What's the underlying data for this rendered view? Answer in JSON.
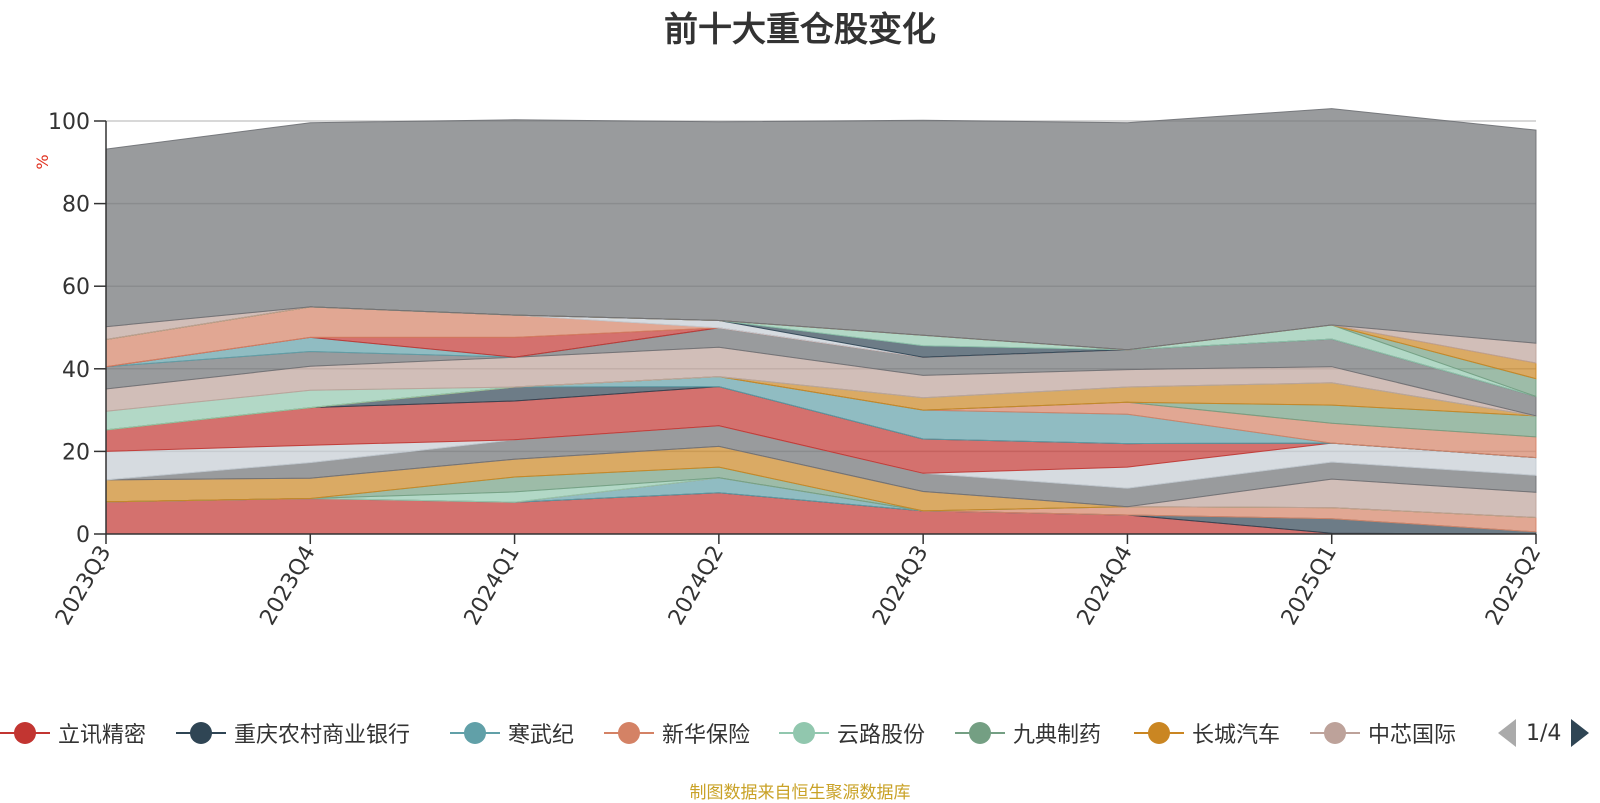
{
  "chart_data": {
    "type": "area",
    "stacked": true,
    "title": "前十大重仓股变化",
    "ylabel": "%",
    "ylim": [
      0,
      100
    ],
    "yticks": [
      0,
      20,
      40,
      60,
      80,
      100
    ],
    "grid": true,
    "legend_position": "bottom",
    "categories": [
      "2023Q3",
      "2023Q4",
      "2024Q1",
      "2024Q2",
      "2024Q3",
      "2024Q4",
      "2025Q1",
      "2025Q2"
    ],
    "series": [
      {
        "name": "立讯精密",
        "color": "#c23531",
        "values": [
          7.8,
          8.6,
          7.7,
          10.0,
          5.6,
          4.6,
          0.2,
          0.0
        ]
      },
      {
        "name": "重庆农村商业银行",
        "color": "#2f4554",
        "values": [
          0.0,
          0.0,
          0.0,
          0.0,
          0.0,
          0.0,
          3.5,
          0.5
        ]
      },
      {
        "name": "寒武纪",
        "color": "#61a0a8",
        "values": [
          0.0,
          0.0,
          0.0,
          3.6,
          0.0,
          0.0,
          0.0,
          0.0
        ]
      },
      {
        "name": "新华保险",
        "color": "#d48265",
        "values": [
          0.0,
          0.0,
          0.0,
          0.0,
          0.0,
          2.0,
          2.7,
          3.5
        ]
      },
      {
        "name": "云路股份",
        "color": "#91c7ae",
        "values": [
          0.0,
          0.0,
          2.5,
          0.0,
          0.0,
          0.0,
          0.0,
          0.0
        ]
      },
      {
        "name": "九典制药",
        "color": "#749f83",
        "values": [
          0.0,
          0.0,
          3.6,
          2.6,
          0.0,
          0.0,
          0.0,
          0.0
        ]
      },
      {
        "name": "长城汽车",
        "color": "#ca8622",
        "values": [
          5.3,
          4.9,
          4.3,
          5.0,
          4.7,
          0.0,
          0.0,
          0.0
        ]
      },
      {
        "name": "中芯国际",
        "color": "#bda29a",
        "values": [
          0.0,
          0.0,
          0.0,
          0.0,
          0.0,
          0.0,
          6.9,
          6.1
        ]
      },
      {
        "name": "",
        "color": "#6e7074",
        "values": [
          0.0,
          3.8,
          4.7,
          5.0,
          4.4,
          4.5,
          4.1,
          4.1
        ]
      },
      {
        "name": "",
        "color": "#c4ccd3",
        "values": [
          6.9,
          4.2,
          0.0,
          0.0,
          0.0,
          5.1,
          4.6,
          4.3
        ]
      },
      {
        "name": "",
        "color": "#c23531",
        "values": [
          5.2,
          9.1,
          9.4,
          9.5,
          8.3,
          5.7,
          0.0,
          0.0
        ]
      },
      {
        "name": "",
        "color": "#2f4554",
        "values": [
          0.0,
          0.0,
          3.4,
          0.0,
          0.0,
          0.0,
          0.0,
          0.0
        ]
      },
      {
        "name": "",
        "color": "#61a0a8",
        "values": [
          0.0,
          0.0,
          0.0,
          2.4,
          7.0,
          7.1,
          0.0,
          0.0
        ]
      },
      {
        "name": "",
        "color": "#d48265",
        "values": [
          0.0,
          0.0,
          0.0,
          0.0,
          0.0,
          2.9,
          4.8,
          5.0
        ]
      },
      {
        "name": "",
        "color": "#749f83",
        "values": [
          0.0,
          0.0,
          0.0,
          0.0,
          0.0,
          0.0,
          4.4,
          5.1
        ]
      },
      {
        "name": "",
        "color": "#ca8622",
        "values": [
          0.0,
          0.0,
          0.0,
          0.0,
          3.0,
          3.7,
          5.4,
          0.0
        ]
      },
      {
        "name": "",
        "color": "#91c7ae",
        "values": [
          4.5,
          4.2,
          0.0,
          0.0,
          0.0,
          0.0,
          0.0,
          0.0
        ]
      },
      {
        "name": "",
        "color": "#bda29a",
        "values": [
          5.4,
          5.8,
          7.2,
          7.1,
          5.4,
          4.2,
          3.9,
          0.0
        ]
      },
      {
        "name": "",
        "color": "#6e7074",
        "values": [
          5.4,
          3.6,
          0.0,
          4.7,
          4.4,
          4.8,
          6.7,
          4.7
        ]
      },
      {
        "name": "",
        "color": "#61a0a8",
        "values": [
          0.0,
          3.4,
          0.0,
          0.0,
          0.0,
          0.0,
          0.0,
          0.0
        ]
      },
      {
        "name": "",
        "color": "#c23531",
        "values": [
          0.0,
          0.0,
          4.8,
          0.0,
          0.0,
          0.0,
          0.0,
          0.0
        ]
      },
      {
        "name": "",
        "color": "#d48265",
        "values": [
          6.6,
          7.4,
          5.4,
          0.0,
          0.0,
          0.0,
          0.0,
          0.0
        ]
      },
      {
        "name": "",
        "color": "#c4ccd3",
        "values": [
          0.0,
          0.0,
          0.0,
          1.8,
          0.0,
          0.0,
          0.0,
          0.0
        ]
      },
      {
        "name": "",
        "color": "#2f4554",
        "values": [
          0.0,
          0.0,
          0.0,
          0.0,
          2.8,
          0.0,
          0.0,
          0.0
        ]
      },
      {
        "name": "",
        "color": "#91c7ae",
        "values": [
          0.0,
          0.0,
          0.0,
          0.0,
          2.5,
          0.0,
          3.4,
          0.0
        ]
      },
      {
        "name": "",
        "color": "#749f83",
        "values": [
          0.0,
          0.0,
          0.0,
          0.0,
          0.0,
          0.0,
          0.0,
          4.3
        ]
      },
      {
        "name": "",
        "color": "#ca8622",
        "values": [
          0.0,
          0.0,
          0.0,
          0.0,
          0.0,
          0.0,
          0.0,
          3.8
        ]
      },
      {
        "name": "",
        "color": "#bda29a",
        "values": [
          3.1,
          0.0,
          0.0,
          0.0,
          0.0,
          0.0,
          0.0,
          4.8
        ]
      },
      {
        "name": "",
        "color": "#6e7074",
        "values": [
          43.0,
          44.6,
          47.3,
          48.1,
          52.1,
          55.0,
          52.4,
          51.6
        ]
      }
    ]
  },
  "legend": {
    "items": [
      {
        "label": "立讯精密",
        "color": "#c23531"
      },
      {
        "label": "重庆农村商业银行",
        "color": "#2f4554"
      },
      {
        "label": "寒武纪",
        "color": "#61a0a8"
      },
      {
        "label": "新华保险",
        "color": "#d48265"
      },
      {
        "label": "云路股份",
        "color": "#91c7ae"
      },
      {
        "label": "九典制药",
        "color": "#749f83"
      },
      {
        "label": "长城汽车",
        "color": "#ca8622"
      },
      {
        "label": "中芯国际",
        "color": "#bda29a"
      }
    ],
    "page_text": "1/4"
  },
  "footer": {
    "source": "制图数据来自恒生聚源数据库"
  }
}
